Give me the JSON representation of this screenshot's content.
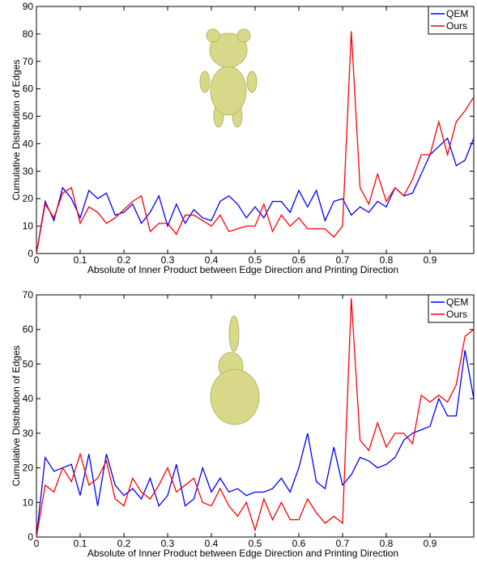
{
  "chart_data": [
    {
      "type": "line",
      "xlabel": "Absolute of Inner Product between Edge Direction and Printing Direction",
      "ylabel": "Cumulative Distribution of Edges",
      "x": [
        0,
        0.02,
        0.04,
        0.06,
        0.08,
        0.1,
        0.12,
        0.14,
        0.16,
        0.18,
        0.2,
        0.22,
        0.24,
        0.26,
        0.28,
        0.3,
        0.32,
        0.34,
        0.36,
        0.38,
        0.4,
        0.42,
        0.44,
        0.46,
        0.48,
        0.5,
        0.52,
        0.54,
        0.56,
        0.58,
        0.6,
        0.62,
        0.64,
        0.66,
        0.68,
        0.7,
        0.72,
        0.74,
        0.76,
        0.78,
        0.8,
        0.82,
        0.84,
        0.86,
        0.88,
        0.9,
        0.92,
        0.94,
        0.96,
        0.98,
        1
      ],
      "series": [
        {
          "name": "QEM",
          "color": "#0000ff",
          "values": [
            0,
            19,
            12,
            24,
            20,
            13,
            23,
            20,
            22,
            14,
            15,
            18,
            11,
            15,
            21,
            10,
            18,
            11,
            16,
            13,
            12,
            19,
            21,
            18,
            13,
            17,
            13,
            19,
            19,
            15,
            23,
            17,
            23,
            12,
            19,
            20,
            14,
            17,
            15,
            19,
            17,
            24,
            21,
            22,
            29,
            36,
            39,
            42,
            32,
            34,
            42
          ]
        },
        {
          "name": "Ours",
          "color": "#ff0000",
          "values": [
            0,
            18,
            13,
            22,
            24,
            11,
            17,
            15,
            11,
            13,
            16,
            19,
            21,
            8,
            11,
            11,
            7,
            14,
            14,
            12,
            10,
            14,
            8,
            9,
            10,
            10,
            18,
            8,
            14,
            10,
            13,
            9,
            9,
            9,
            6,
            10,
            81,
            24,
            18,
            29,
            19,
            24,
            21,
            27,
            36,
            36,
            48,
            36,
            48,
            52,
            57
          ]
        }
      ],
      "xlim": [
        0,
        1
      ],
      "ylim": [
        0,
        90
      ],
      "xticks": [
        0,
        0.1,
        0.2,
        0.3,
        0.4,
        0.5,
        0.6,
        0.7,
        0.8,
        0.9
      ],
      "yticks": [
        0,
        10,
        20,
        30,
        40,
        50,
        60,
        70,
        80,
        90
      ],
      "legend": "upper right"
    },
    {
      "type": "line",
      "xlabel": "Absolute of Inner Product between Edge Direction and Printing Direction",
      "ylabel": "Cumulative Distribution of Edges",
      "x": [
        0,
        0.02,
        0.04,
        0.06,
        0.08,
        0.1,
        0.12,
        0.14,
        0.16,
        0.18,
        0.2,
        0.22,
        0.24,
        0.26,
        0.28,
        0.3,
        0.32,
        0.34,
        0.36,
        0.38,
        0.4,
        0.42,
        0.44,
        0.46,
        0.48,
        0.5,
        0.52,
        0.54,
        0.56,
        0.58,
        0.6,
        0.62,
        0.64,
        0.66,
        0.68,
        0.7,
        0.72,
        0.74,
        0.76,
        0.78,
        0.8,
        0.82,
        0.84,
        0.86,
        0.88,
        0.9,
        0.92,
        0.94,
        0.96,
        0.98,
        1
      ],
      "series": [
        {
          "name": "QEM",
          "color": "#0000ff",
          "values": [
            0,
            23,
            19,
            20,
            21,
            12,
            24,
            9,
            24,
            15,
            12,
            14,
            11,
            17,
            9,
            12,
            21,
            9,
            11,
            20,
            13,
            17,
            13,
            14,
            12,
            13,
            13,
            14,
            17,
            13,
            20,
            30,
            16,
            14,
            26,
            15,
            18,
            23,
            22,
            20,
            21,
            23,
            28,
            30,
            31,
            32,
            40,
            35,
            35,
            54,
            40
          ]
        },
        {
          "name": "Ours",
          "color": "#ff0000",
          "values": [
            0,
            15,
            13,
            20,
            16,
            24,
            15,
            17,
            22,
            11,
            9,
            17,
            13,
            11,
            15,
            20,
            13,
            15,
            17,
            10,
            9,
            14,
            9,
            6,
            10,
            2,
            11,
            5,
            10,
            5,
            5,
            11,
            7,
            4,
            6,
            4,
            69,
            28,
            25,
            33,
            26,
            30,
            30,
            27,
            41,
            39,
            41,
            39,
            44,
            58,
            60
          ]
        }
      ],
      "xlim": [
        0,
        1
      ],
      "ylim": [
        0,
        70
      ],
      "xticks": [
        0,
        0.1,
        0.2,
        0.3,
        0.4,
        0.5,
        0.6,
        0.7,
        0.8,
        0.9
      ],
      "yticks": [
        0,
        10,
        20,
        30,
        40,
        50,
        60,
        70
      ],
      "legend": "upper right"
    }
  ]
}
